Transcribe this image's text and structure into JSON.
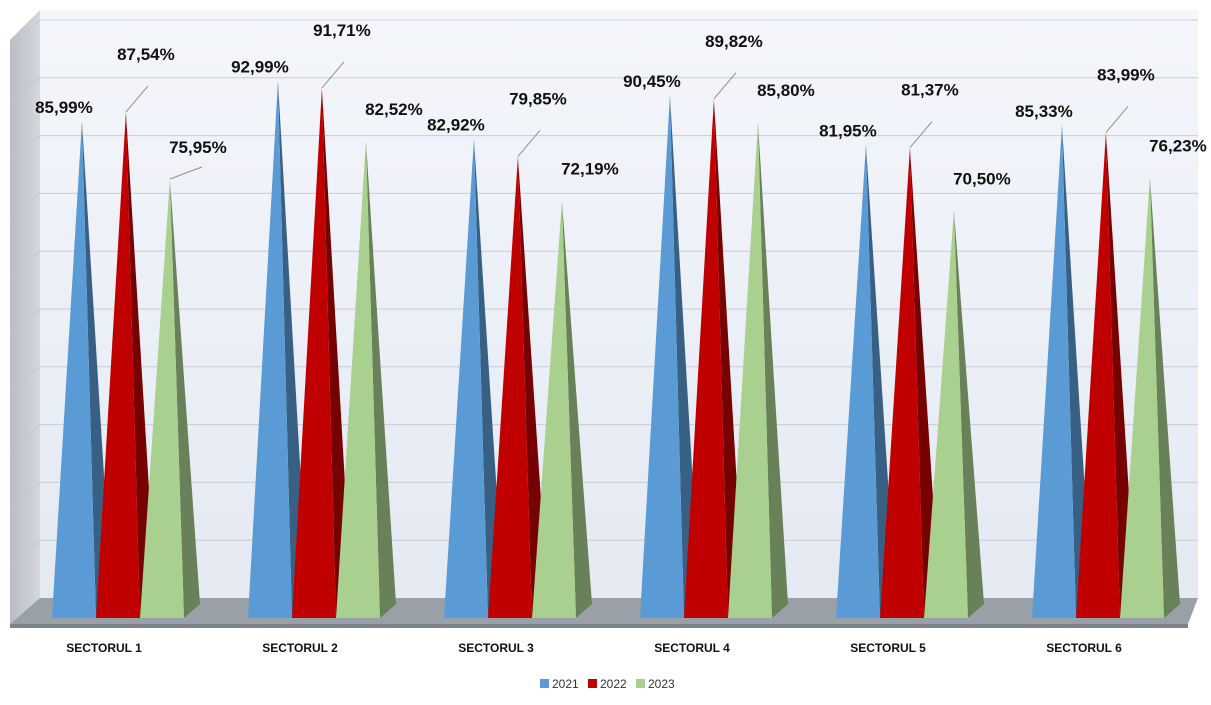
{
  "chart_data": {
    "type": "bar",
    "bar_shape": "pyramid",
    "three_d": true,
    "categories": [
      "SECTORUL 1",
      "SECTORUL 2",
      "SECTORUL 3",
      "SECTORUL 4",
      "SECTORUL 5",
      "SECTORUL 6"
    ],
    "series": [
      {
        "name": "2021",
        "values": [
          85.99,
          92.99,
          82.92,
          90.45,
          81.95,
          85.33
        ],
        "labels": [
          "85,99%",
          "92,99%",
          "82,92%",
          "90,45%",
          "81,95%",
          "85,33%"
        ],
        "color": "#5b9bd5"
      },
      {
        "name": "2022",
        "values": [
          87.54,
          91.71,
          79.85,
          89.82,
          81.37,
          83.99
        ],
        "labels": [
          "87,54%",
          "91,71%",
          "79,85%",
          "89,82%",
          "81,37%",
          "83,99%"
        ],
        "color": "#c00000"
      },
      {
        "name": "2023",
        "values": [
          75.95,
          82.52,
          72.19,
          85.8,
          70.5,
          76.23
        ],
        "labels": [
          "75,95%",
          "82,52%",
          "72,19%",
          "85,80%",
          "70,50%",
          "76,23%"
        ],
        "color": "#a9d08e"
      }
    ],
    "ylim": [
      0,
      100
    ],
    "grid": true,
    "legend": "bottom-center",
    "title": "",
    "xlabel": "",
    "ylabel": ""
  }
}
